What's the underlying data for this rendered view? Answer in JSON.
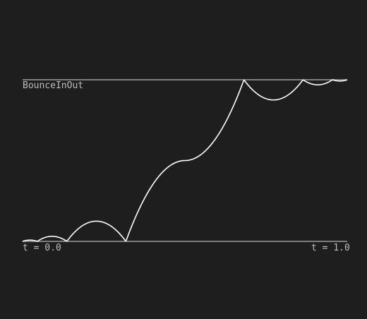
{
  "chart_data": {
    "type": "line",
    "easing": "BounceInOut",
    "title": "BounceInOut",
    "x_start_label": "t = 0.0",
    "x_end_label": "t = 1.0",
    "xlim": [
      0,
      1
    ],
    "ylim": [
      0,
      1
    ],
    "grid": false,
    "baseline_values": [
      0,
      1
    ],
    "series": [
      {
        "formula": "t<0.5 ? (1 - bounceOut(1 - 2t)) / 2 : (1 + bounceOut(2t - 1)) / 2",
        "samples": 400
      }
    ],
    "colors": {
      "background": "#1e1e1e",
      "curve": "#ffffff",
      "reference_line": "#9e9e9e",
      "label": "#bdbdbd"
    }
  }
}
